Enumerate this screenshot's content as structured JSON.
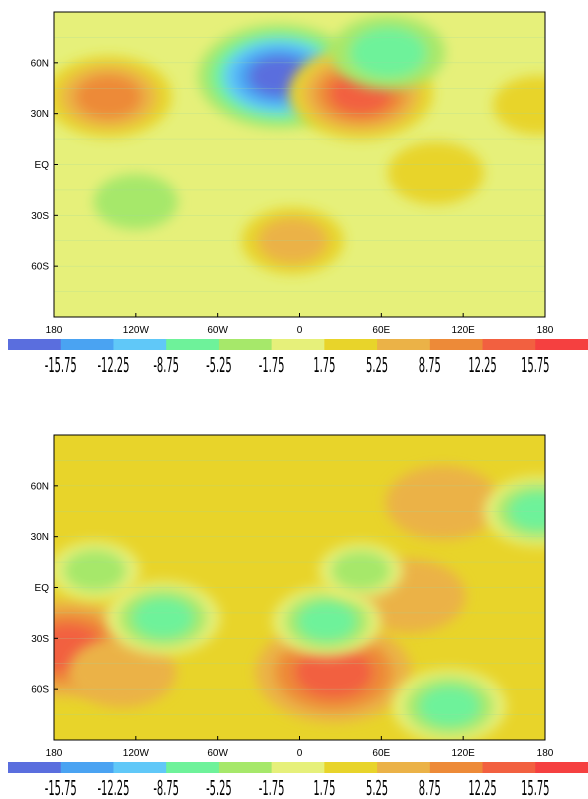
{
  "chart_data": [
    {
      "type": "heatmap",
      "title": "",
      "xlabel": "",
      "ylabel": "",
      "x_ticks": [
        "180",
        "120W",
        "60W",
        "0",
        "60E",
        "120E",
        "180"
      ],
      "y_ticks": [
        "60N",
        "30N",
        "EQ",
        "30S",
        "60S"
      ],
      "xlim": [
        -180,
        180
      ],
      "ylim": [
        -90,
        90
      ],
      "background_level": 0,
      "contour_levels": [
        "-15.75",
        "-12.25",
        "-8.75",
        "-5.25",
        "-1.75",
        "1.75",
        "5.25",
        "8.75",
        "12.25",
        "15.75"
      ],
      "level_colors": [
        "#5a6ede",
        "#4aa3f2",
        "#60c8f8",
        "#6ef29a",
        "#a6e86a",
        "#e6f07a",
        "#e8d42a",
        "#ebb247",
        "#ed8a38",
        "#f26040",
        "#f54040"
      ],
      "features": [
        {
          "lon": -15,
          "lat": 52,
          "value": -16
        },
        {
          "lon": -140,
          "lat": 40,
          "value": 10
        },
        {
          "lon": 45,
          "lat": 42,
          "value": 13
        },
        {
          "lon": 65,
          "lat": 66,
          "value": -8
        },
        {
          "lon": 100,
          "lat": -5,
          "value": 5
        },
        {
          "lon": -5,
          "lat": -45,
          "value": 6
        },
        {
          "lon": -120,
          "lat": -22,
          "value": -3
        },
        {
          "lon": 175,
          "lat": 35,
          "value": 4
        }
      ]
    },
    {
      "type": "heatmap",
      "title": "",
      "xlabel": "",
      "ylabel": "",
      "x_ticks": [
        "180",
        "120W",
        "60W",
        "0",
        "60E",
        "120E",
        "180"
      ],
      "y_ticks": [
        "60N",
        "30N",
        "EQ",
        "30S",
        "60S"
      ],
      "xlim": [
        -180,
        180
      ],
      "ylim": [
        -90,
        90
      ],
      "background_level": 1,
      "contour_levels": [
        "-15.75",
        "-12.25",
        "-8.75",
        "-5.25",
        "-1.75",
        "1.75",
        "5.25",
        "8.75",
        "12.25",
        "15.75"
      ],
      "level_colors": [
        "#5a6ede",
        "#4aa3f2",
        "#60c8f8",
        "#6ef29a",
        "#a6e86a",
        "#e6f07a",
        "#e8d42a",
        "#ebb247",
        "#ed8a38",
        "#f26040",
        "#f54040"
      ],
      "features": [
        {
          "lon": -170,
          "lat": -36,
          "value": 14
        },
        {
          "lon": -130,
          "lat": -50,
          "value": 7
        },
        {
          "lon": 25,
          "lat": -50,
          "value": 15
        },
        {
          "lon": -100,
          "lat": -18,
          "value": -8
        },
        {
          "lon": -10,
          "lat": 45,
          "value": 5
        },
        {
          "lon": 105,
          "lat": 50,
          "value": 8
        },
        {
          "lon": 175,
          "lat": 45,
          "value": -7
        },
        {
          "lon": 80,
          "lat": -5,
          "value": 8
        },
        {
          "lon": 110,
          "lat": -70,
          "value": -8
        },
        {
          "lon": 20,
          "lat": -20,
          "value": -7
        },
        {
          "lon": 45,
          "lat": 10,
          "value": -3
        },
        {
          "lon": -150,
          "lat": 10,
          "value": -4
        },
        {
          "lon": -50,
          "lat": -10,
          "value": 3
        }
      ]
    }
  ],
  "colorbars": [
    {
      "labels": [
        "-15.75",
        "-12.25",
        "-8.75",
        "-5.25",
        "-1.75",
        "1.75",
        "5.25",
        "8.75",
        "12.25",
        "15.75"
      ]
    },
    {
      "labels": [
        "-15.75",
        "-12.25",
        "-8.75",
        "-5.25",
        "-1.75",
        "1.75",
        "5.25",
        "8.75",
        "12.25",
        "15.75"
      ]
    }
  ]
}
